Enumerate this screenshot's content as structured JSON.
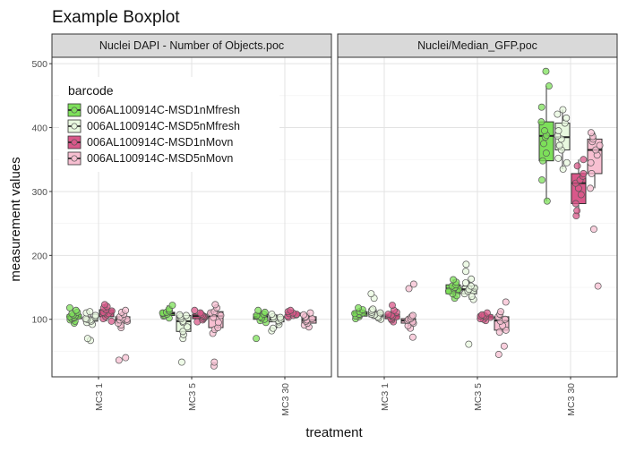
{
  "chart_data": {
    "type": "boxplot",
    "title": "Example Boxplot",
    "xlabel": "treatment",
    "ylabel": "measurement values",
    "ylim": [
      10,
      510
    ],
    "yticks": [
      100,
      200,
      300,
      400,
      500
    ],
    "grid": true,
    "legend_position": "top-left",
    "legend_title": "barcode",
    "categories": [
      "MC3 1",
      "MC3 5",
      "MC3 30"
    ],
    "series": [
      {
        "name": "006AL100914C-MSD1nMfresh",
        "color": "#7de05a"
      },
      {
        "name": "006AL100914C-MSD5nMfresh",
        "color": "#e8f8df"
      },
      {
        "name": "006AL100914C-MSD1nMovn",
        "color": "#d9588a"
      },
      {
        "name": "006AL100914C-MSD5nMovn",
        "color": "#f7bfd1"
      }
    ],
    "panels": [
      {
        "title": "Nuclei DAPI - Number of Objects.poc",
        "groups": [
          {
            "category": "MC3 1",
            "series": 0,
            "whisker_low": 94,
            "q1": 101,
            "median": 104,
            "q3": 107,
            "whisker_high": 114,
            "points": [
              94,
              97,
              99,
              101,
              102,
              103,
              104,
              105,
              106,
              107,
              109,
              111,
              114,
              118
            ]
          },
          {
            "category": "MC3 1",
            "series": 1,
            "whisker_low": 92,
            "q1": 97,
            "median": 100,
            "q3": 103,
            "whisker_high": 110,
            "points": [
              67,
              70,
              92,
              95,
              97,
              99,
              100,
              101,
              103,
              106,
              110,
              112
            ]
          },
          {
            "category": "MC3 1",
            "series": 2,
            "whisker_low": 97,
            "q1": 104,
            "median": 110,
            "q3": 115,
            "whisker_high": 123,
            "points": [
              97,
              101,
              104,
              107,
              109,
              110,
              111,
              113,
              115,
              118,
              120,
              123
            ]
          },
          {
            "category": "MC3 1",
            "series": 3,
            "whisker_low": 87,
            "q1": 94,
            "median": 100,
            "q3": 104,
            "whisker_high": 114,
            "points": [
              36,
              40,
              87,
              91,
              94,
              97,
              99,
              100,
              102,
              104,
              108,
              111,
              114
            ]
          },
          {
            "category": "MC3 5",
            "series": 0,
            "whisker_low": 102,
            "q1": 106,
            "median": 109,
            "q3": 111,
            "whisker_high": 122,
            "points": [
              102,
              105,
              106,
              108,
              109,
              110,
              111,
              113,
              116,
              122
            ]
          },
          {
            "category": "MC3 5",
            "series": 1,
            "whisker_low": 70,
            "q1": 81,
            "median": 97,
            "q3": 106,
            "whisker_high": 107,
            "points": [
              33,
              70,
              76,
              81,
              88,
              95,
              97,
              101,
              104,
              106,
              107
            ]
          },
          {
            "category": "MC3 5",
            "series": 2,
            "whisker_low": 96,
            "q1": 101,
            "median": 105,
            "q3": 108,
            "whisker_high": 114,
            "points": [
              96,
              99,
              101,
              103,
              104,
              105,
              106,
              108,
              110,
              114
            ]
          },
          {
            "category": "MC3 5",
            "series": 3,
            "whisker_low": 78,
            "q1": 87,
            "median": 105,
            "q3": 112,
            "whisker_high": 123,
            "points": [
              27,
              33,
              78,
              84,
              87,
              95,
              103,
              106,
              110,
              112,
              118,
              123
            ]
          },
          {
            "category": "MC3 30",
            "series": 0,
            "whisker_low": 95,
            "q1": 100,
            "median": 104,
            "q3": 108,
            "whisker_high": 114,
            "points": [
              70,
              95,
              98,
              100,
              102,
              104,
              106,
              108,
              111,
              114
            ]
          },
          {
            "category": "MC3 30",
            "series": 1,
            "whisker_low": 86,
            "q1": 96,
            "median": 100,
            "q3": 104,
            "whisker_high": 108,
            "points": [
              82,
              86,
              92,
              96,
              98,
              100,
              101,
              103,
              104,
              108
            ]
          },
          {
            "category": "MC3 30",
            "series": 2,
            "whisker_low": 103,
            "q1": 106,
            "median": 108,
            "q3": 110,
            "whisker_high": 114,
            "points": [
              103,
              105,
              106,
              107,
              108,
              109,
              110,
              112,
              114
            ]
          },
          {
            "category": "MC3 30",
            "series": 3,
            "whisker_low": 88,
            "q1": 94,
            "median": 99,
            "q3": 104,
            "whisker_high": 110,
            "points": [
              88,
              91,
              94,
              97,
              99,
              101,
              103,
              104,
              107,
              110
            ]
          }
        ]
      },
      {
        "title": "Nuclei/Median_GFP.poc",
        "groups": [
          {
            "category": "MC3 1",
            "series": 0,
            "whisker_low": 101,
            "q1": 105,
            "median": 109,
            "q3": 112,
            "whisker_high": 118,
            "points": [
              101,
              104,
              105,
              107,
              108,
              109,
              110,
              112,
              115,
              118
            ]
          },
          {
            "category": "MC3 1",
            "series": 1,
            "whisker_low": 100,
            "q1": 104,
            "median": 107,
            "q3": 111,
            "whisker_high": 116,
            "points": [
              100,
              102,
              104,
              106,
              107,
              108,
              110,
              111,
              114,
              116,
              133,
              140
            ]
          },
          {
            "category": "MC3 1",
            "series": 2,
            "whisker_low": 96,
            "q1": 101,
            "median": 105,
            "q3": 108,
            "whisker_high": 114,
            "points": [
              96,
              99,
              101,
              103,
              104,
              105,
              107,
              108,
              111,
              114,
              122
            ]
          },
          {
            "category": "MC3 1",
            "series": 3,
            "whisker_low": 86,
            "q1": 94,
            "median": 98,
            "q3": 101,
            "whisker_high": 106,
            "points": [
              72,
              86,
              90,
              94,
              96,
              98,
              100,
              101,
              104,
              106,
              148,
              155
            ]
          },
          {
            "category": "MC3 5",
            "series": 0,
            "whisker_low": 133,
            "q1": 140,
            "median": 148,
            "q3": 154,
            "whisker_high": 162,
            "points": [
              133,
              137,
              140,
              144,
              147,
              148,
              150,
              152,
              154,
              158,
              162
            ]
          },
          {
            "category": "MC3 5",
            "series": 1,
            "whisker_low": 131,
            "q1": 140,
            "median": 147,
            "q3": 152,
            "whisker_high": 163,
            "points": [
              61,
              131,
              136,
              140,
              144,
              147,
              149,
              152,
              157,
              163,
              175,
              186
            ]
          },
          {
            "category": "MC3 5",
            "series": 2,
            "whisker_low": 98,
            "q1": 101,
            "median": 104,
            "q3": 107,
            "whisker_high": 110,
            "points": [
              98,
              100,
              101,
              103,
              104,
              105,
              106,
              107,
              110
            ]
          },
          {
            "category": "MC3 5",
            "series": 3,
            "whisker_low": 80,
            "q1": 83,
            "median": 98,
            "q3": 104,
            "whisker_high": 112,
            "points": [
              45,
              58,
              80,
              83,
              90,
              97,
              100,
              104,
              108,
              112,
              127
            ]
          },
          {
            "category": "MC3 30",
            "series": 0,
            "whisker_low": 285,
            "q1": 348,
            "median": 387,
            "q3": 409,
            "whisker_high": 465,
            "points": [
              285,
              318,
              348,
              360,
              375,
              385,
              388,
              395,
              409,
              432,
              465,
              488
            ]
          },
          {
            "category": "MC3 30",
            "series": 1,
            "whisker_low": 335,
            "q1": 365,
            "median": 385,
            "q3": 407,
            "whisker_high": 428,
            "points": [
              335,
              345,
              352,
              365,
              372,
              382,
              387,
              395,
              407,
              415,
              421,
              428
            ]
          },
          {
            "category": "MC3 30",
            "series": 2,
            "whisker_low": 262,
            "q1": 281,
            "median": 313,
            "q3": 328,
            "whisker_high": 350,
            "points": [
              262,
              270,
              281,
              295,
              305,
              313,
              318,
              324,
              328,
              340,
              350
            ]
          },
          {
            "category": "MC3 30",
            "series": 3,
            "whisker_low": 305,
            "q1": 328,
            "median": 365,
            "q3": 382,
            "whisker_high": 392,
            "points": [
              152,
              241,
              305,
              328,
              345,
              357,
              365,
              372,
              378,
              382,
              386,
              392
            ]
          }
        ]
      }
    ]
  }
}
